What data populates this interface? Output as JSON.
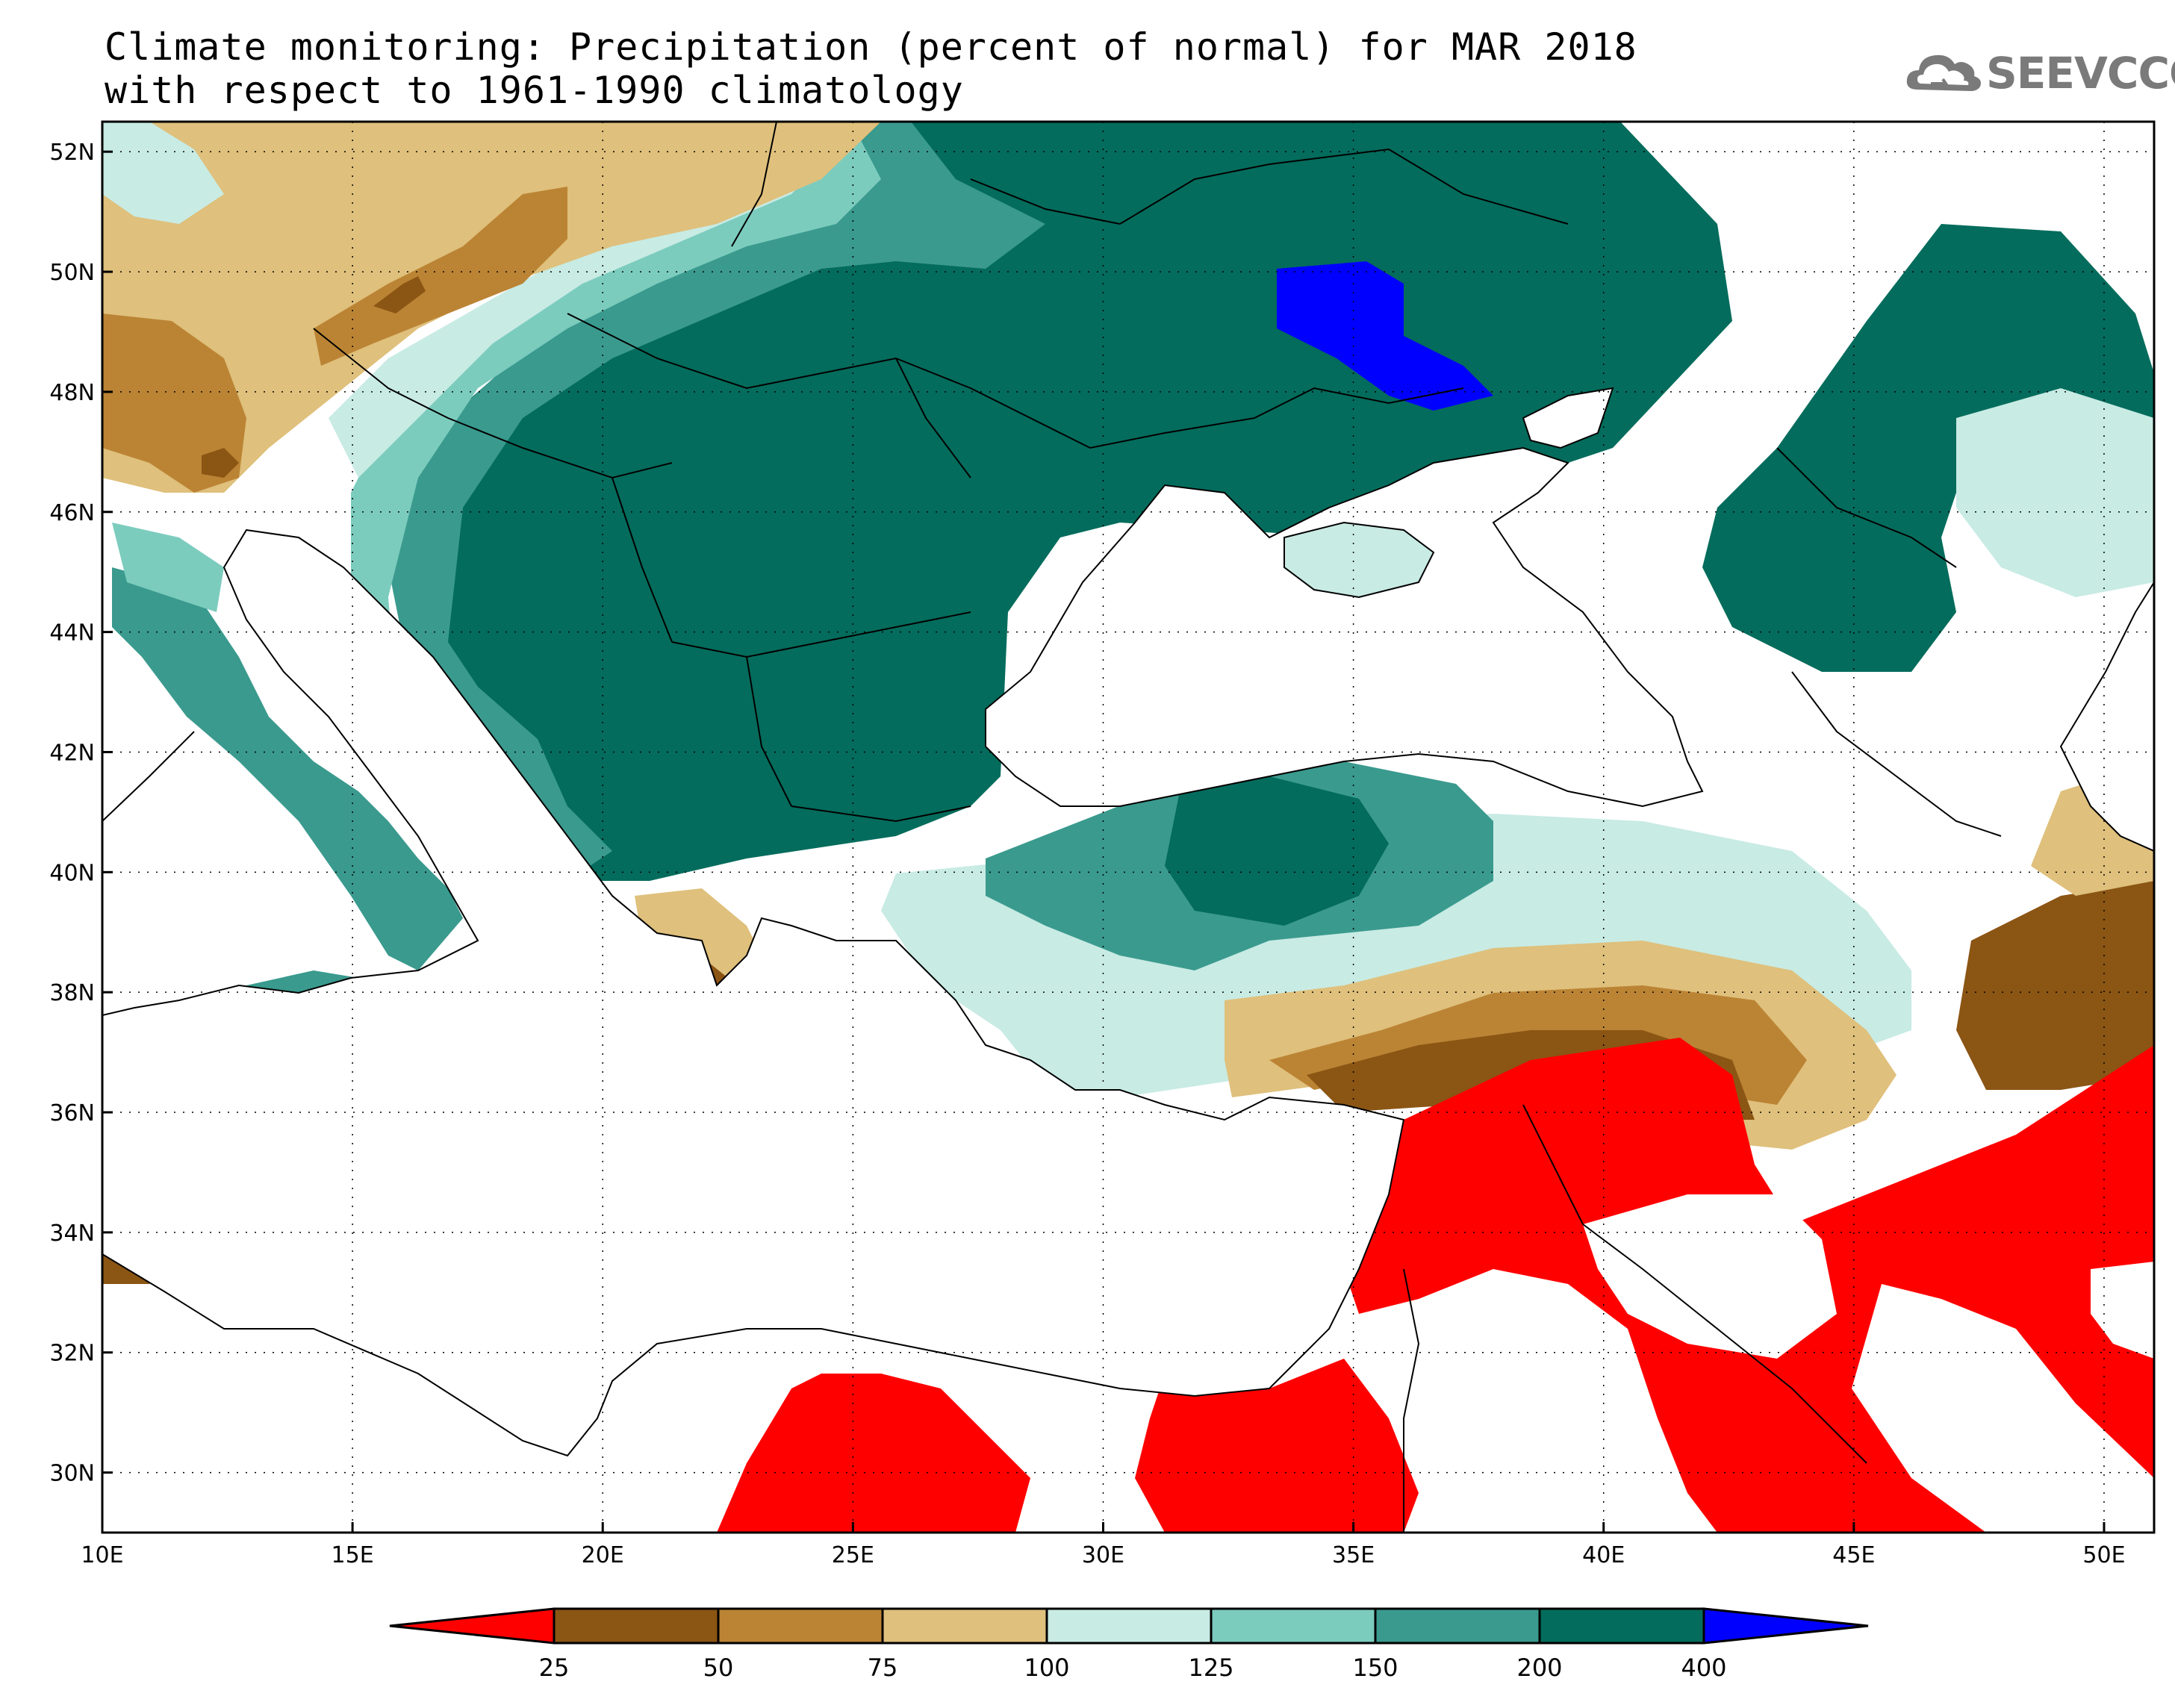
{
  "title": {
    "line1": "Climate monitoring: Precipitation (percent of normal) for MAR 2018",
    "line2": "with respect to 1961-1990 climatology"
  },
  "logo": {
    "text": "SEEVCCC",
    "icon": "cloud-icon",
    "color": "#7a7a7a"
  },
  "map": {
    "lon_range": [
      10,
      51
    ],
    "lat_range": [
      29,
      52.5
    ],
    "x_ticks": [
      "10E",
      "15E",
      "20E",
      "25E",
      "30E",
      "35E",
      "40E",
      "45E",
      "50E"
    ],
    "y_ticks": [
      "30N",
      "32N",
      "34N",
      "36N",
      "38N",
      "40N",
      "42N",
      "44N",
      "46N",
      "48N",
      "50N",
      "52N"
    ],
    "grid": "dotted"
  },
  "colorbar": {
    "labels": [
      "25",
      "50",
      "75",
      "100",
      "125",
      "150",
      "200",
      "400"
    ],
    "colors": [
      "#ff0000",
      "#8b5514",
      "#bb8434",
      "#dfc07c",
      "#c8ebe4",
      "#7cccbe",
      "#3a9a8e",
      "#046c5c",
      "#0000ff"
    ]
  }
}
